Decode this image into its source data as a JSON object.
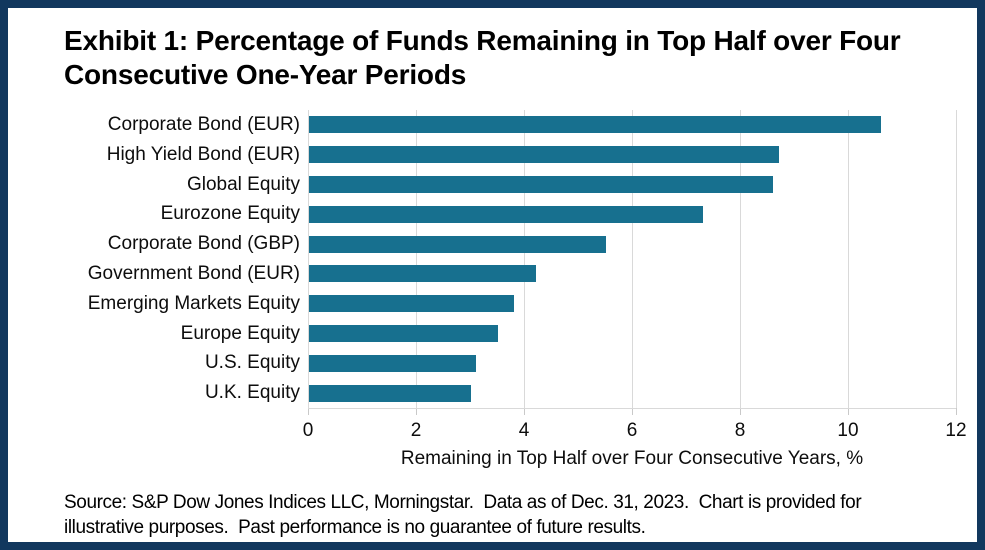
{
  "title": "Exhibit 1: Percentage of Funds Remaining in Top Half over Four Consecutive One-Year Periods",
  "chart_data": {
    "type": "bar",
    "orientation": "horizontal",
    "title": "Exhibit 1: Percentage of Funds Remaining in Top Half over Four Consecutive One-Year Periods",
    "categories": [
      "Corporate Bond (EUR)",
      "High Yield Bond (EUR)",
      "Global Equity",
      "Eurozone Equity",
      "Corporate Bond (GBP)",
      "Government Bond (EUR)",
      "Emerging Markets Equity",
      "Europe Equity",
      "U.S. Equity",
      "U.K. Equity"
    ],
    "values": [
      10.6,
      8.7,
      8.6,
      7.3,
      5.5,
      4.2,
      3.8,
      3.5,
      3.1,
      3.0
    ],
    "xlabel": "Remaining in Top Half over Four Consecutive Years, %",
    "ylabel": "",
    "xlim": [
      0,
      12
    ],
    "xticks": [
      0,
      2,
      4,
      6,
      8,
      10,
      12
    ],
    "grid": "vertical",
    "legend": "none",
    "bar_color": "#17708f"
  },
  "footer": {
    "line1": "Source: S&P Dow Jones Indices LLC, Morningstar.  Data as of Dec. 31, 2023.  Chart is provided for",
    "line2": "illustrative purposes.  Past performance is no guarantee of future results."
  },
  "colors": {
    "frame_border": "#12385e",
    "bar": "#17708f",
    "gridline": "#d9d9d9",
    "text": "#000000"
  }
}
